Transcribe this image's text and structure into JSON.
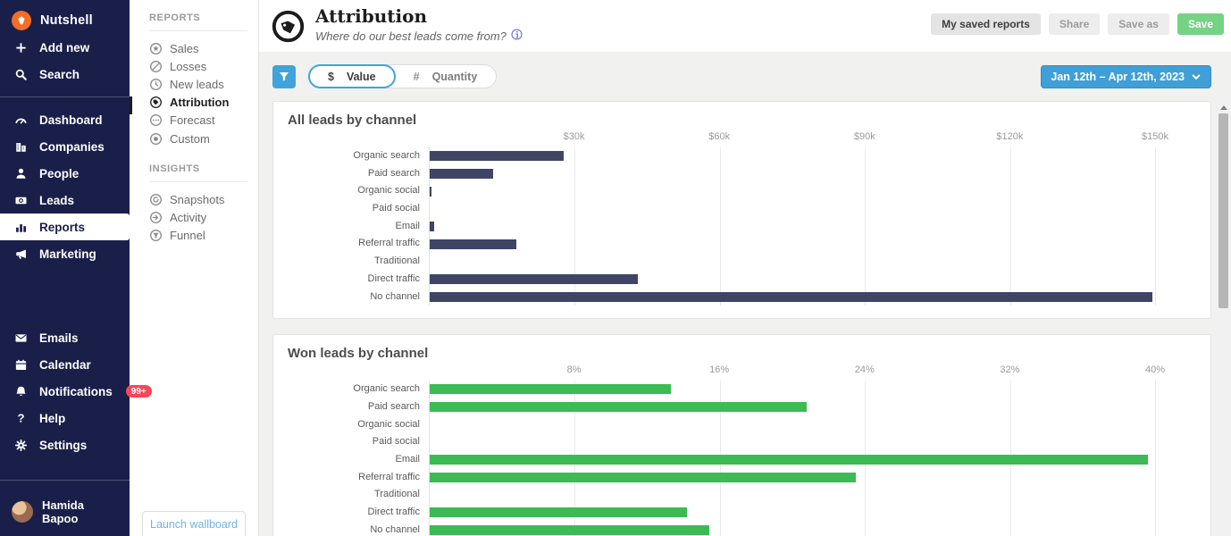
{
  "colors": {
    "sidebar_navy": "#1a1f4a",
    "accent_blue": "#41a3da",
    "save_green": "#76d285",
    "badge_red": "#fb4458",
    "bar_navy": "#3f4565",
    "bar_green": "#3cba54"
  },
  "sidebar": {
    "brand": "Nutshell",
    "top_items": [
      {
        "label": "Add new",
        "icon": "plus-icon"
      },
      {
        "label": "Search",
        "icon": "search-icon"
      }
    ],
    "nav_items": [
      {
        "label": "Dashboard",
        "icon": "dashboard-icon",
        "active": false
      },
      {
        "label": "Companies",
        "icon": "companies-icon",
        "active": false
      },
      {
        "label": "People",
        "icon": "people-icon",
        "active": false
      },
      {
        "label": "Leads",
        "icon": "leads-icon",
        "active": false
      },
      {
        "label": "Reports",
        "icon": "reports-icon",
        "active": true
      },
      {
        "label": "Marketing",
        "icon": "marketing-icon",
        "active": false
      }
    ],
    "utility_items": [
      {
        "label": "Emails",
        "icon": "emails-icon"
      },
      {
        "label": "Calendar",
        "icon": "calendar-icon"
      },
      {
        "label": "Notifications",
        "icon": "notifications-icon",
        "badge": "99+"
      },
      {
        "label": "Help",
        "icon": "help-icon"
      },
      {
        "label": "Settings",
        "icon": "settings-icon"
      }
    ],
    "user": {
      "name": "Hamida Bapoo"
    }
  },
  "reports_nav": {
    "sections": [
      {
        "title": "REPORTS",
        "items": [
          {
            "label": "Sales",
            "icon": "sales-icon",
            "active": false
          },
          {
            "label": "Losses",
            "icon": "losses-icon",
            "active": false
          },
          {
            "label": "New leads",
            "icon": "new-leads-icon",
            "active": false
          },
          {
            "label": "Attribution",
            "icon": "attribution-icon",
            "active": true
          },
          {
            "label": "Forecast",
            "icon": "forecast-icon",
            "active": false
          },
          {
            "label": "Custom",
            "icon": "custom-icon",
            "active": false
          }
        ]
      },
      {
        "title": "INSIGHTS",
        "items": [
          {
            "label": "Snapshots",
            "icon": "snapshots-icon",
            "active": false
          },
          {
            "label": "Activity",
            "icon": "activity-icon",
            "active": false
          },
          {
            "label": "Funnel",
            "icon": "funnel-icon",
            "active": false
          }
        ]
      }
    ],
    "wallboard_button": "Launch wallboard"
  },
  "header": {
    "title": "Attribution",
    "subtitle": "Where do our best leads come from?",
    "actions": [
      {
        "label": "My saved reports",
        "style": "default"
      },
      {
        "label": "Share",
        "style": "muted"
      },
      {
        "label": "Save as",
        "style": "muted"
      },
      {
        "label": "Save",
        "style": "primary"
      }
    ]
  },
  "filters": {
    "toggle": [
      {
        "symbol": "$",
        "label": "Value",
        "selected": true
      },
      {
        "symbol": "#",
        "label": "Quantity",
        "selected": false
      }
    ],
    "date_range": "Jan 12th – Apr 12th, 2023"
  },
  "chart_data": [
    {
      "type": "bar",
      "title": "All leads by channel",
      "orientation": "horizontal",
      "categories": [
        "Organic search",
        "Paid search",
        "Organic social",
        "Paid social",
        "Email",
        "Referral traffic",
        "Traditional",
        "Direct traffic",
        "No channel"
      ],
      "values": [
        27700,
        13200,
        300,
        0,
        900,
        18000,
        0,
        43000,
        149500
      ],
      "unit": "USD",
      "xlim": [
        0,
        150000
      ],
      "ticks": [
        {
          "value": 30000,
          "label": "$30k"
        },
        {
          "value": 60000,
          "label": "$60k"
        },
        {
          "value": 90000,
          "label": "$90k"
        },
        {
          "value": 120000,
          "label": "$120k"
        },
        {
          "value": 150000,
          "label": "$150k"
        }
      ],
      "grid": true,
      "bar_color": "#3f4565"
    },
    {
      "type": "bar",
      "title": "Won leads by channel",
      "orientation": "horizontal",
      "categories": [
        "Organic search",
        "Paid search",
        "Organic social",
        "Paid social",
        "Email",
        "Referral traffic",
        "Traditional",
        "Direct traffic",
        "No channel"
      ],
      "values": [
        13.3,
        20.8,
        0,
        0,
        39.6,
        23.5,
        0,
        14.2,
        15.4
      ],
      "unit": "%",
      "xlim": [
        0,
        40
      ],
      "ticks": [
        {
          "value": 8,
          "label": "8%"
        },
        {
          "value": 16,
          "label": "16%"
        },
        {
          "value": 24,
          "label": "24%"
        },
        {
          "value": 32,
          "label": "32%"
        },
        {
          "value": 40,
          "label": "40%"
        }
      ],
      "grid": true,
      "bar_color": "#3cba54"
    }
  ]
}
